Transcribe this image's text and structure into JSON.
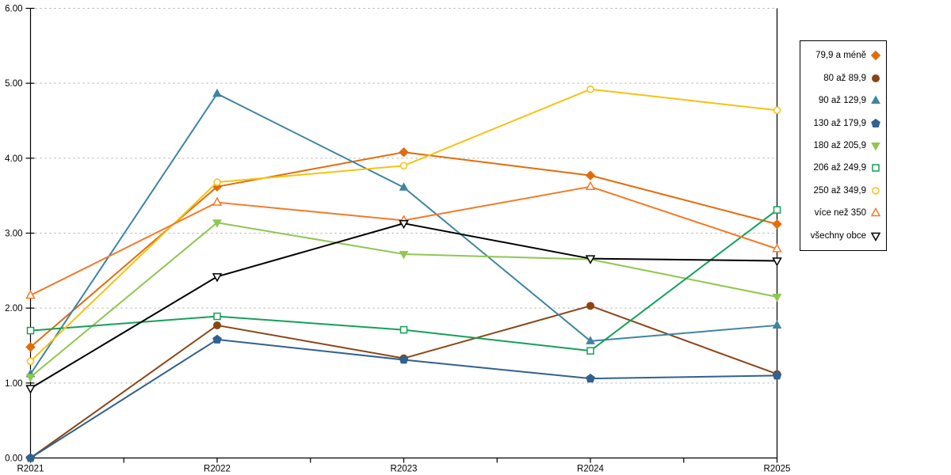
{
  "chart_data": {
    "type": "line",
    "title": "",
    "xlabel": "",
    "ylabel": "",
    "x": [
      "R2021",
      "R2022",
      "R2023",
      "R2024",
      "R2025"
    ],
    "ylim": [
      0,
      6
    ],
    "ytick_labels": [
      "0.00",
      "1.00",
      "2.00",
      "3.00",
      "4.00",
      "5.00",
      "6.00"
    ],
    "grid": "horizontal-dotted",
    "grid_color": "#aaaaaa",
    "axis_color": "#000000",
    "legend_position": "right",
    "series": [
      {
        "name": "79,9 a méně",
        "color": "#E36C09",
        "marker": "diamond-filled",
        "values": [
          1.48,
          3.62,
          4.08,
          3.77,
          3.12
        ]
      },
      {
        "name": "80 až 89,9",
        "color": "#8B4513",
        "marker": "circle-filled",
        "values": [
          0.0,
          1.77,
          1.33,
          2.03,
          1.12
        ]
      },
      {
        "name": "90 až 129,9",
        "color": "#3E85A0",
        "marker": "triangle-up-filled",
        "values": [
          1.12,
          4.86,
          3.61,
          1.56,
          1.77
        ]
      },
      {
        "name": "130 až 179,9",
        "color": "#31618F",
        "marker": "pentagon-filled",
        "values": [
          0.0,
          1.58,
          1.31,
          1.06,
          1.1
        ]
      },
      {
        "name": "180 až 205,9",
        "color": "#8FC74F",
        "marker": "triangle-down-filled",
        "values": [
          1.08,
          3.14,
          2.72,
          2.65,
          2.15
        ]
      },
      {
        "name": "206 až 249,9",
        "color": "#15A05A",
        "marker": "square-open",
        "values": [
          1.7,
          1.89,
          1.71,
          1.43,
          3.31
        ]
      },
      {
        "name": "250 až 349,9",
        "color": "#F5C211",
        "marker": "circle-open",
        "values": [
          1.29,
          3.68,
          3.9,
          4.92,
          4.64
        ]
      },
      {
        "name": "více než 350",
        "color": "#F07B28",
        "marker": "triangle-up-open",
        "values": [
          2.17,
          3.41,
          3.17,
          3.62,
          2.79
        ]
      },
      {
        "name": "všechny obce",
        "color": "#000000",
        "marker": "triangle-down-open",
        "values": [
          0.93,
          2.42,
          3.13,
          2.66,
          2.63
        ]
      }
    ]
  }
}
